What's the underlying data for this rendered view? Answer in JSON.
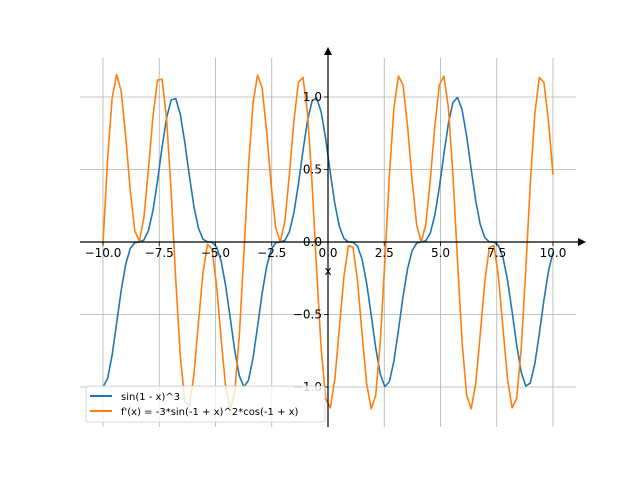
{
  "chart_data": {
    "type": "line",
    "title": "",
    "xlabel": "x",
    "ylabel": "",
    "xlim": [
      -10,
      10
    ],
    "ylim": [
      -1.25,
      1.3
    ],
    "grid": true,
    "legend_position": "bottom-left",
    "x_ticks": [
      -10.0,
      -7.5,
      -5.0,
      -2.5,
      0.0,
      2.5,
      5.0,
      7.5,
      10.0
    ],
    "x_tick_labels": [
      "−10.0",
      "−7.5",
      "−5.0",
      "−2.5",
      "0.0",
      "2.5",
      "5.0",
      "7.5",
      "10.0"
    ],
    "y_ticks": [
      -1.0,
      -0.5,
      0.0,
      0.5,
      1.0
    ],
    "y_tick_labels": [
      "−1.0",
      "−0.5",
      "0.0",
      "0.5",
      "1.0"
    ],
    "samples": 100,
    "series": [
      {
        "name": "sin(1 - x)^3",
        "expression": "sin(1-x)^3",
        "color": "#1f77b4"
      },
      {
        "name": "f'(x) = -3*sin(-1 + x)^2*cos(-1 + x)",
        "expression": "-3*sin(x-1)^2*cos(x-1)",
        "color": "#ff7f0e"
      }
    ]
  }
}
